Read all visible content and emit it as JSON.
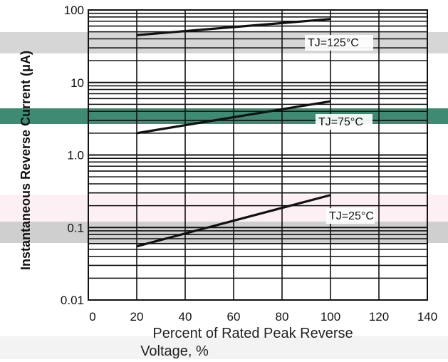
{
  "chart_data": {
    "type": "line",
    "title": "",
    "xlabel": "Percent of Rated Peak Reverse Voltage, %",
    "ylabel": "Instantaneous Reverse Current (μA)",
    "x_ticks": [
      "0",
      "20",
      "40",
      "60",
      "80",
      "100",
      "120",
      "140"
    ],
    "y_ticks": [
      "0.01",
      "0.1",
      "1.0",
      "10",
      "100"
    ],
    "xlim": [
      0,
      140
    ],
    "ylim": [
      0.01,
      100
    ],
    "y_scale": "log",
    "grid": true,
    "series": [
      {
        "name": "TJ=125°C",
        "x": [
          20,
          100
        ],
        "y": [
          45,
          75
        ]
      },
      {
        "name": "TJ=75°C",
        "x": [
          20,
          100
        ],
        "y": [
          2.0,
          5.5
        ]
      },
      {
        "name": "TJ=25°C",
        "x": [
          20,
          100
        ],
        "y": [
          0.055,
          0.28
        ]
      }
    ]
  }
}
